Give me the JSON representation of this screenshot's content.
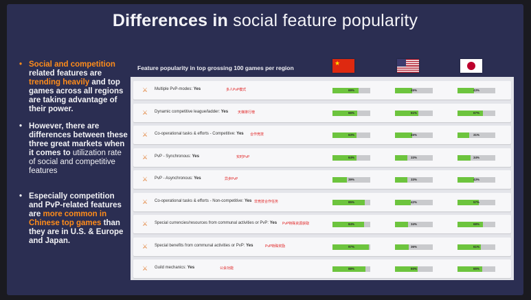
{
  "slide": {
    "title_bold": "Differences in",
    "title_normal": "social feature popularity"
  },
  "bullets": [
    {
      "highlight1": "Social and competition",
      "text1": " related features are ",
      "highlight2": "trending heavily",
      "text2": " and top games across all regions are taking advantage of their power."
    },
    {
      "text1": "However, there are differences between these three great markets when it comes to",
      "text2": " utilization rate of social and competitive features"
    },
    {
      "text1": "Especially competition and PvP-related features are ",
      "highlight": "more common in Chinese top games",
      "text2": " than they are in U.S. & Europe and Japan."
    }
  ],
  "table": {
    "heading": "Feature popularity in top grossing 100 games per region",
    "columns": [
      "China",
      "United States",
      "Japan"
    ],
    "rows": [
      {
        "label": "Multiple PvP-modes:",
        "yes": "Yes",
        "note": "多人PvP模式",
        "cn": 69,
        "us": 45,
        "jp": 43
      },
      {
        "label": "Dynamic competitive league/ladder:",
        "yes": "Yes",
        "note": "天梯排行榜",
        "cn": 66,
        "us": 61,
        "jp": 67
      },
      {
        "label": "Co-operational tasks & efforts - Competitive:",
        "yes": "Yes",
        "note": "合作竞技",
        "cn": 63,
        "us": 45,
        "jp": 31
      },
      {
        "label": "PvP - Synchronous:",
        "yes": "Yes",
        "note": "实时PvP",
        "cn": 64,
        "us": 33,
        "jp": 34
      },
      {
        "label": "PvP - Asynchronous:",
        "yes": "Yes",
        "note": "异步PvP",
        "cn": 39,
        "us": 33,
        "jp": 43
      },
      {
        "label": "Co-operational tasks & efforts - Non-competitive:",
        "yes": "Yes",
        "note": "非竞技合作任务",
        "cn": 85,
        "us": 42,
        "jp": 57
      },
      {
        "label": "Special currencies/resources from communal activities or PvP:",
        "yes": "Yes",
        "note": "PvP特殊资源获取",
        "cn": 84,
        "us": 34,
        "jp": 68
      },
      {
        "label": "Special benefits from communal activities or PvP:",
        "yes": "Yes",
        "note": "PvP特殊奖励",
        "cn": 97,
        "us": 36,
        "jp": 61
      },
      {
        "label": "Guild mechanics:",
        "yes": "Yes",
        "note": "公会功能",
        "cn": 88,
        "us": 60,
        "jp": 65
      }
    ]
  },
  "colors": {
    "background": "#2b2e52",
    "accent": "#ff8c1a",
    "bar_fill": "#6dc43e",
    "bar_track": "#c9cacd"
  }
}
